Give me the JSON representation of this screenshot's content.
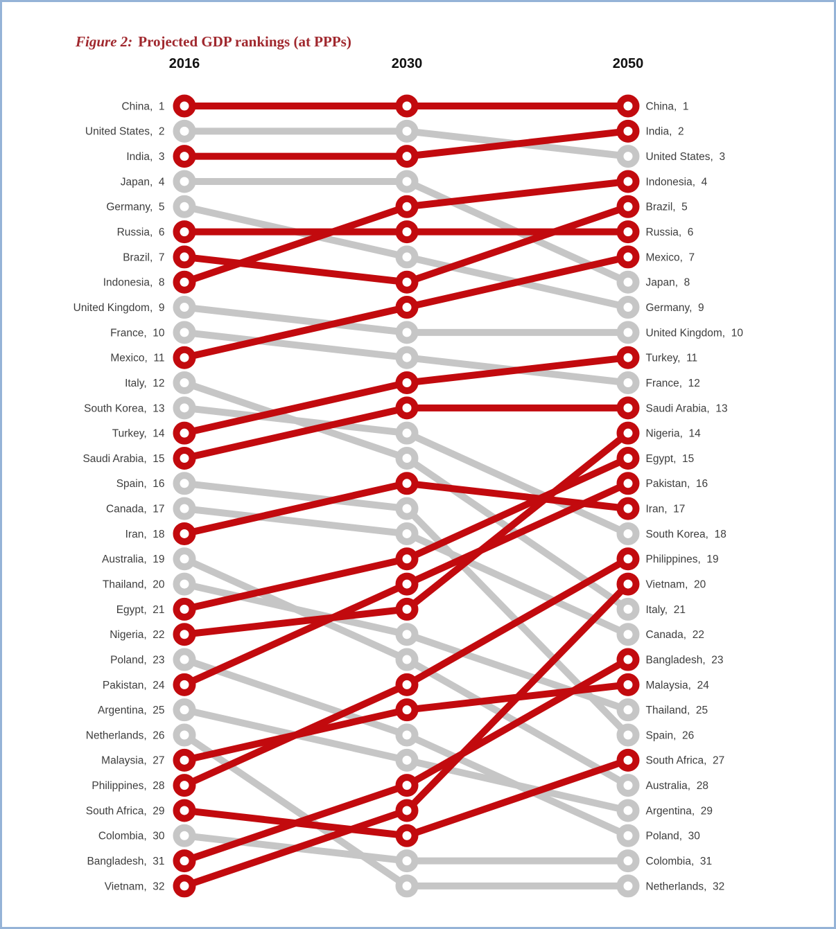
{
  "figure": {
    "title_prefix": "Figure 2:",
    "title_text": "Projected GDP rankings (at PPPs)"
  },
  "colors": {
    "emerging": "#c20a0e",
    "advanced": "#c6c6c6",
    "node_fill": "#ffffff",
    "title": "#a0282e",
    "label": "#3d3d3d",
    "header": "#111111",
    "border": "#95b3d7"
  },
  "chart_data": {
    "type": "line",
    "subtype": "bump-rank-chart",
    "columns": [
      "2016",
      "2030",
      "2050"
    ],
    "rank_range": [
      1,
      32
    ],
    "legend_semantics": {
      "emerging": "red lines - emerging economies",
      "advanced": "grey lines - advanced economies"
    },
    "series": [
      {
        "name": "China",
        "group": "emerging",
        "ranks": [
          1,
          1,
          1
        ]
      },
      {
        "name": "United States",
        "group": "advanced",
        "ranks": [
          2,
          2,
          3
        ]
      },
      {
        "name": "India",
        "group": "emerging",
        "ranks": [
          3,
          3,
          2
        ]
      },
      {
        "name": "Japan",
        "group": "advanced",
        "ranks": [
          4,
          4,
          8
        ]
      },
      {
        "name": "Germany",
        "group": "advanced",
        "ranks": [
          5,
          7,
          9
        ]
      },
      {
        "name": "Russia",
        "group": "emerging",
        "ranks": [
          6,
          6,
          6
        ]
      },
      {
        "name": "Brazil",
        "group": "emerging",
        "ranks": [
          7,
          8,
          5
        ]
      },
      {
        "name": "Indonesia",
        "group": "emerging",
        "ranks": [
          8,
          5,
          4
        ]
      },
      {
        "name": "United Kingdom",
        "group": "advanced",
        "ranks": [
          9,
          10,
          10
        ]
      },
      {
        "name": "France",
        "group": "advanced",
        "ranks": [
          10,
          11,
          12
        ]
      },
      {
        "name": "Mexico",
        "group": "emerging",
        "ranks": [
          11,
          9,
          7
        ]
      },
      {
        "name": "Italy",
        "group": "advanced",
        "ranks": [
          12,
          15,
          21
        ]
      },
      {
        "name": "South Korea",
        "group": "advanced",
        "ranks": [
          13,
          14,
          18
        ]
      },
      {
        "name": "Turkey",
        "group": "emerging",
        "ranks": [
          14,
          12,
          11
        ]
      },
      {
        "name": "Saudi Arabia",
        "group": "emerging",
        "ranks": [
          15,
          13,
          13
        ]
      },
      {
        "name": "Spain",
        "group": "advanced",
        "ranks": [
          16,
          17,
          26
        ]
      },
      {
        "name": "Canada",
        "group": "advanced",
        "ranks": [
          17,
          18,
          22
        ]
      },
      {
        "name": "Iran",
        "group": "emerging",
        "ranks": [
          18,
          16,
          17
        ]
      },
      {
        "name": "Australia",
        "group": "advanced",
        "ranks": [
          19,
          23,
          28
        ]
      },
      {
        "name": "Thailand",
        "group": "advanced",
        "ranks": [
          20,
          22,
          25
        ]
      },
      {
        "name": "Egypt",
        "group": "emerging",
        "ranks": [
          21,
          19,
          15
        ]
      },
      {
        "name": "Nigeria",
        "group": "emerging",
        "ranks": [
          22,
          21,
          14
        ]
      },
      {
        "name": "Poland",
        "group": "advanced",
        "ranks": [
          23,
          26,
          30
        ]
      },
      {
        "name": "Pakistan",
        "group": "emerging",
        "ranks": [
          24,
          20,
          16
        ]
      },
      {
        "name": "Argentina",
        "group": "advanced",
        "ranks": [
          25,
          27,
          29
        ]
      },
      {
        "name": "Netherlands",
        "group": "advanced",
        "ranks": [
          26,
          32,
          32
        ]
      },
      {
        "name": "Malaysia",
        "group": "emerging",
        "ranks": [
          27,
          25,
          24
        ]
      },
      {
        "name": "Philippines",
        "group": "emerging",
        "ranks": [
          28,
          24,
          19
        ]
      },
      {
        "name": "South Africa",
        "group": "emerging",
        "ranks": [
          29,
          30,
          27
        ]
      },
      {
        "name": "Colombia",
        "group": "advanced",
        "ranks": [
          30,
          31,
          31
        ]
      },
      {
        "name": "Bangladesh",
        "group": "emerging",
        "ranks": [
          31,
          28,
          23
        ]
      },
      {
        "name": "Vietnam",
        "group": "emerging",
        "ranks": [
          32,
          29,
          20
        ]
      }
    ]
  }
}
